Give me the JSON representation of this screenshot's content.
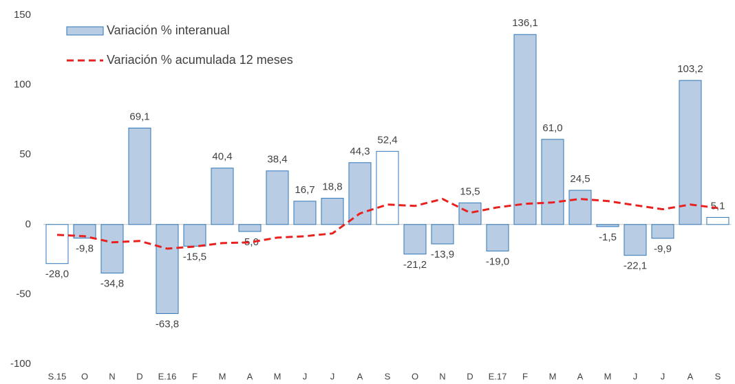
{
  "chart_data": {
    "type": "bar",
    "categories": [
      "S.15",
      "O",
      "N",
      "D",
      "E.16",
      "F",
      "M",
      "A",
      "M",
      "J",
      "J",
      "A",
      "S",
      "O",
      "N",
      "D",
      "E.17",
      "F",
      "M",
      "A",
      "M",
      "J",
      "J",
      "A",
      "S"
    ],
    "series": [
      {
        "name": "Variación % interanual",
        "type": "bar",
        "color": "#b8cce4",
        "edge_color": "#2e75b6",
        "colors": [
          "#ffffff",
          "#b8cce4",
          "#b8cce4",
          "#b8cce4",
          "#b8cce4",
          "#b8cce4",
          "#b8cce4",
          "#b8cce4",
          "#b8cce4",
          "#b8cce4",
          "#b8cce4",
          "#b8cce4",
          "#ffffff",
          "#b8cce4",
          "#b8cce4",
          "#b8cce4",
          "#b8cce4",
          "#b8cce4",
          "#b8cce4",
          "#b8cce4",
          "#b8cce4",
          "#b8cce4",
          "#b8cce4",
          "#b8cce4",
          "#ffffff"
        ],
        "values": [
          -28.0,
          -9.8,
          -34.8,
          69.1,
          -63.8,
          -15.5,
          40.4,
          -5.0,
          38.4,
          16.7,
          18.8,
          44.3,
          52.4,
          -21.2,
          -13.9,
          15.5,
          -19.0,
          136.1,
          61.0,
          24.5,
          -1.5,
          -22.1,
          -9.9,
          103.2,
          5.1
        ],
        "value_labels": [
          "-28,0",
          "-9,8",
          "-34,8",
          "69,1",
          "-63,8",
          "-15,5",
          "40,4",
          "-5,0",
          "38,4",
          "16,7",
          "18,8",
          "44,3",
          "52,4",
          "-21,2",
          "-13,9",
          "15,5",
          "-19,0",
          "136,1",
          "61,0",
          "24,5",
          "-1,5",
          "-22,1",
          "-9,9",
          "103,2",
          "5,1"
        ]
      },
      {
        "name": "Variación % acumulada 12 meses",
        "type": "line",
        "color": "#e8211e",
        "values": [
          -7.4,
          -8.4,
          -12.8,
          -11.8,
          -17.3,
          -15.8,
          -13.3,
          -12.8,
          -9.4,
          -8.4,
          -6.4,
          7.9,
          14.3,
          13.3,
          18.3,
          8.4,
          12.3,
          14.8,
          15.8,
          18.3,
          16.8,
          13.8,
          10.9,
          14.3,
          11.8
        ]
      }
    ],
    "ylim": [
      -100,
      150
    ],
    "yticks": [
      -100,
      -50,
      0,
      50,
      100,
      150
    ],
    "grid": false,
    "legend": "upper left"
  }
}
